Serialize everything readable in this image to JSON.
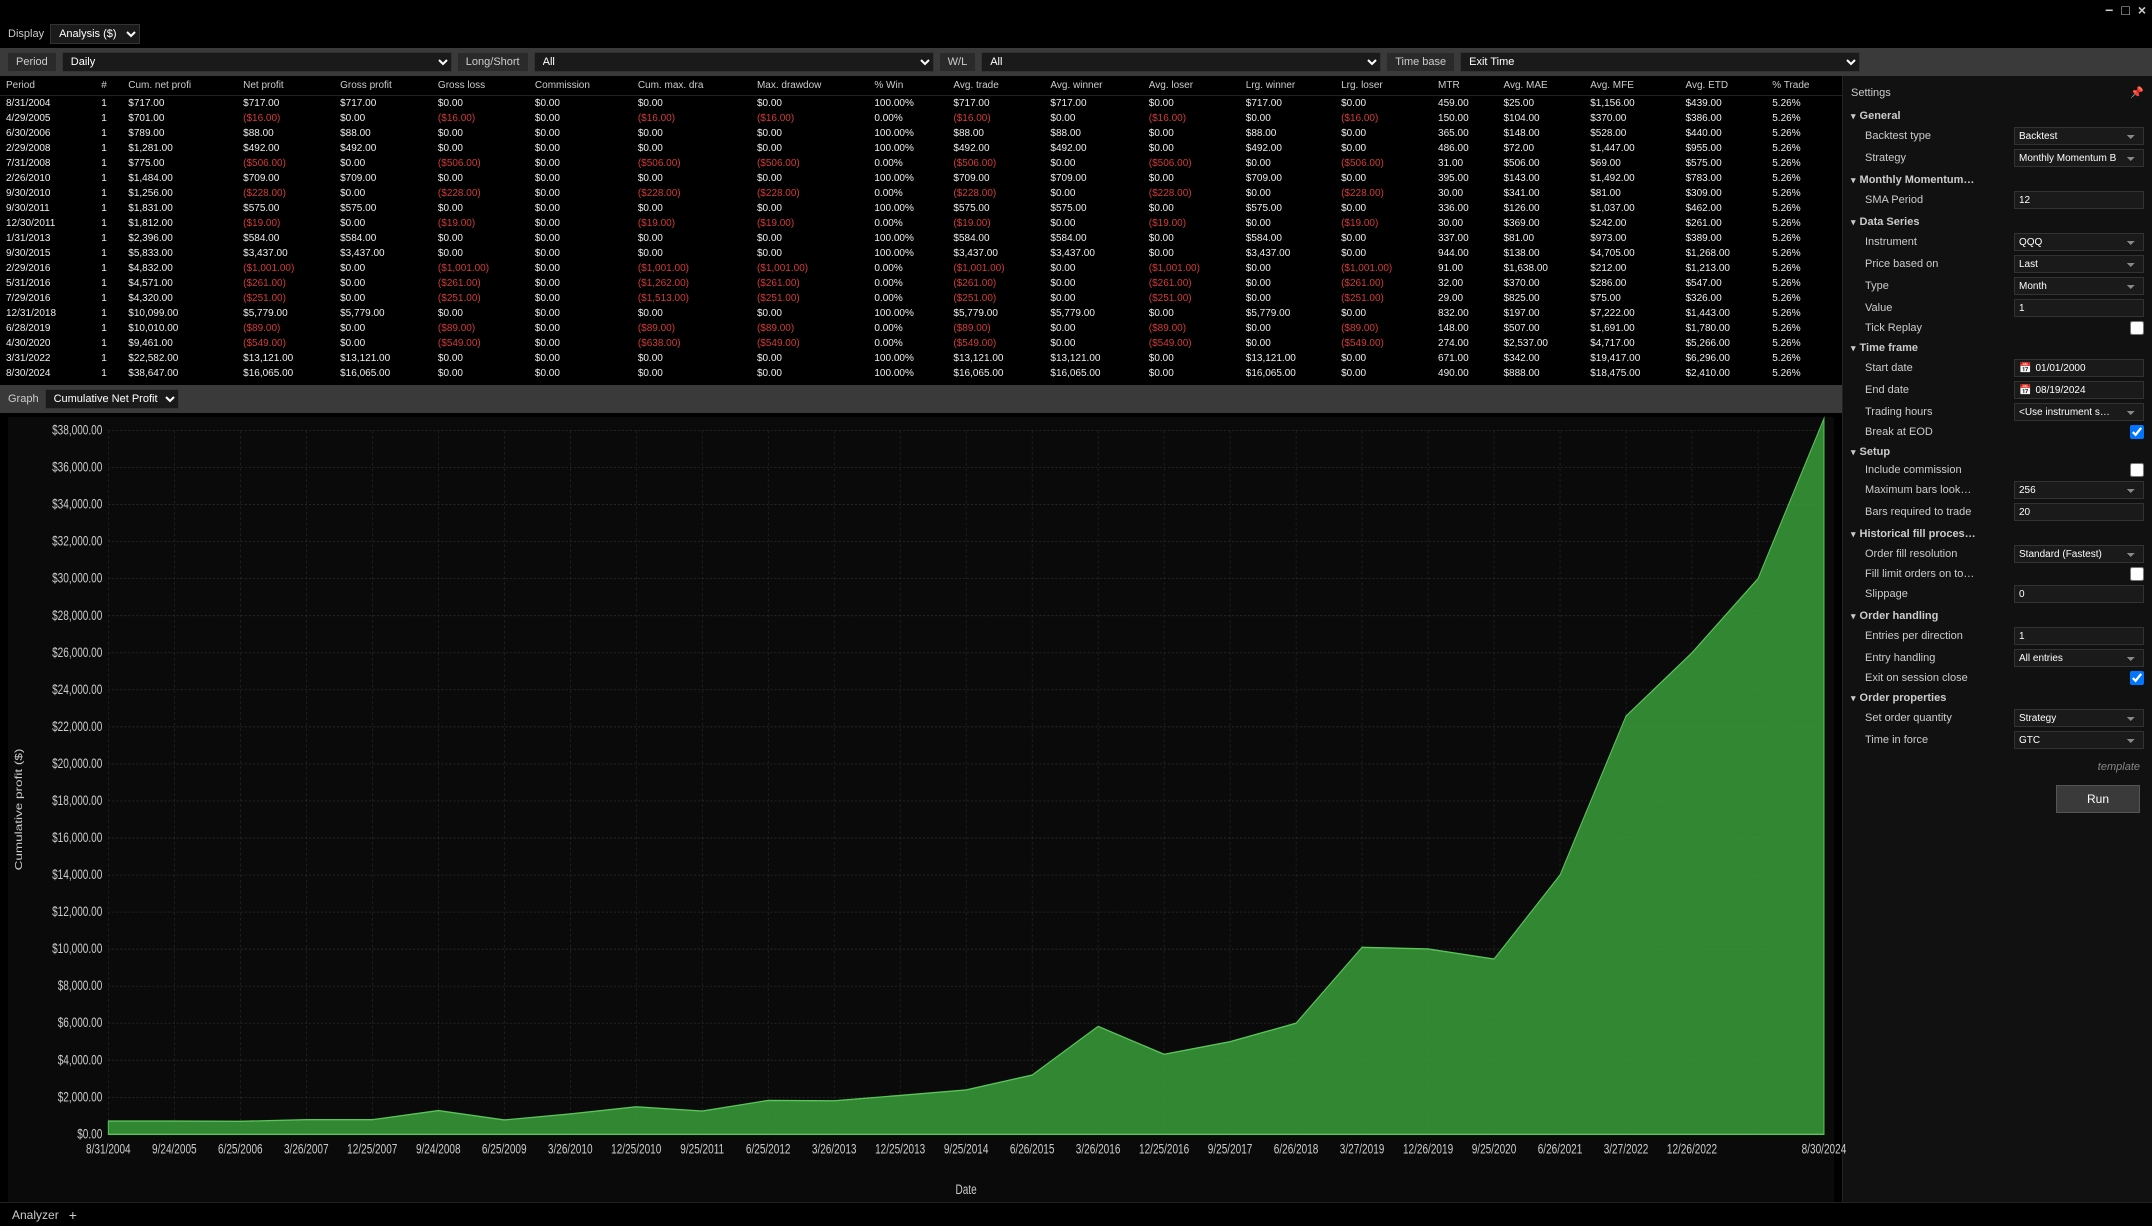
{
  "titlebar": {
    "min": "−",
    "max": "□",
    "close": "×"
  },
  "display_label": "Display",
  "display_value": "Analysis ($)",
  "filters": {
    "period_label": "Period",
    "period_value": "Daily",
    "ls_label": "Long/Short",
    "ls_value": "All",
    "wl_label": "W/L",
    "wl_value": "All",
    "tb_label": "Time base",
    "tb_value": "Exit Time"
  },
  "table": {
    "columns": [
      "Period",
      "#",
      "Cum. net profi",
      "Net profit",
      "Gross profit",
      "Gross loss",
      "Commission",
      "Cum. max. dra",
      "Max. drawdow",
      "% Win",
      "Avg. trade",
      "Avg. winner",
      "Avg. loser",
      "Lrg. winner",
      "Lrg. loser",
      "MTR",
      "Avg. MAE",
      "Avg. MFE",
      "Avg. ETD",
      "% Trade"
    ],
    "rows": [
      [
        "8/31/2004",
        "1",
        "$717.00",
        "$717.00",
        "$717.00",
        "$0.00",
        "$0.00",
        "$0.00",
        "$0.00",
        "100.00%",
        "$717.00",
        "$717.00",
        "$0.00",
        "$717.00",
        "$0.00",
        "459.00",
        "$25.00",
        "$1,156.00",
        "$439.00",
        "5.26%"
      ],
      [
        "4/29/2005",
        "1",
        "$701.00",
        "($16.00)",
        "$0.00",
        "($16.00)",
        "$0.00",
        "($16.00)",
        "($16.00)",
        "0.00%",
        "($16.00)",
        "$0.00",
        "($16.00)",
        "$0.00",
        "($16.00)",
        "150.00",
        "$104.00",
        "$370.00",
        "$386.00",
        "5.26%"
      ],
      [
        "6/30/2006",
        "1",
        "$789.00",
        "$88.00",
        "$88.00",
        "$0.00",
        "$0.00",
        "$0.00",
        "$0.00",
        "100.00%",
        "$88.00",
        "$88.00",
        "$0.00",
        "$88.00",
        "$0.00",
        "365.00",
        "$148.00",
        "$528.00",
        "$440.00",
        "5.26%"
      ],
      [
        "2/29/2008",
        "1",
        "$1,281.00",
        "$492.00",
        "$492.00",
        "$0.00",
        "$0.00",
        "$0.00",
        "$0.00",
        "100.00%",
        "$492.00",
        "$492.00",
        "$0.00",
        "$492.00",
        "$0.00",
        "486.00",
        "$72.00",
        "$1,447.00",
        "$955.00",
        "5.26%"
      ],
      [
        "7/31/2008",
        "1",
        "$775.00",
        "($506.00)",
        "$0.00",
        "($506.00)",
        "$0.00",
        "($506.00)",
        "($506.00)",
        "0.00%",
        "($506.00)",
        "$0.00",
        "($506.00)",
        "$0.00",
        "($506.00)",
        "31.00",
        "$506.00",
        "$69.00",
        "$575.00",
        "5.26%"
      ],
      [
        "2/26/2010",
        "1",
        "$1,484.00",
        "$709.00",
        "$709.00",
        "$0.00",
        "$0.00",
        "$0.00",
        "$0.00",
        "100.00%",
        "$709.00",
        "$709.00",
        "$0.00",
        "$709.00",
        "$0.00",
        "395.00",
        "$143.00",
        "$1,492.00",
        "$783.00",
        "5.26%"
      ],
      [
        "9/30/2010",
        "1",
        "$1,256.00",
        "($228.00)",
        "$0.00",
        "($228.00)",
        "$0.00",
        "($228.00)",
        "($228.00)",
        "0.00%",
        "($228.00)",
        "$0.00",
        "($228.00)",
        "$0.00",
        "($228.00)",
        "30.00",
        "$341.00",
        "$81.00",
        "$309.00",
        "5.26%"
      ],
      [
        "9/30/2011",
        "1",
        "$1,831.00",
        "$575.00",
        "$575.00",
        "$0.00",
        "$0.00",
        "$0.00",
        "$0.00",
        "100.00%",
        "$575.00",
        "$575.00",
        "$0.00",
        "$575.00",
        "$0.00",
        "336.00",
        "$126.00",
        "$1,037.00",
        "$462.00",
        "5.26%"
      ],
      [
        "12/30/2011",
        "1",
        "$1,812.00",
        "($19.00)",
        "$0.00",
        "($19.00)",
        "$0.00",
        "($19.00)",
        "($19.00)",
        "0.00%",
        "($19.00)",
        "$0.00",
        "($19.00)",
        "$0.00",
        "($19.00)",
        "30.00",
        "$369.00",
        "$242.00",
        "$261.00",
        "5.26%"
      ],
      [
        "1/31/2013",
        "1",
        "$2,396.00",
        "$584.00",
        "$584.00",
        "$0.00",
        "$0.00",
        "$0.00",
        "$0.00",
        "100.00%",
        "$584.00",
        "$584.00",
        "$0.00",
        "$584.00",
        "$0.00",
        "337.00",
        "$81.00",
        "$973.00",
        "$389.00",
        "5.26%"
      ],
      [
        "9/30/2015",
        "1",
        "$5,833.00",
        "$3,437.00",
        "$3,437.00",
        "$0.00",
        "$0.00",
        "$0.00",
        "$0.00",
        "100.00%",
        "$3,437.00",
        "$3,437.00",
        "$0.00",
        "$3,437.00",
        "$0.00",
        "944.00",
        "$138.00",
        "$4,705.00",
        "$1,268.00",
        "5.26%"
      ],
      [
        "2/29/2016",
        "1",
        "$4,832.00",
        "($1,001.00)",
        "$0.00",
        "($1,001.00)",
        "$0.00",
        "($1,001.00)",
        "($1,001.00)",
        "0.00%",
        "($1,001.00)",
        "$0.00",
        "($1,001.00)",
        "$0.00",
        "($1,001.00)",
        "91.00",
        "$1,638.00",
        "$212.00",
        "$1,213.00",
        "5.26%"
      ],
      [
        "5/31/2016",
        "1",
        "$4,571.00",
        "($261.00)",
        "$0.00",
        "($261.00)",
        "$0.00",
        "($1,262.00)",
        "($261.00)",
        "0.00%",
        "($261.00)",
        "$0.00",
        "($261.00)",
        "$0.00",
        "($261.00)",
        "32.00",
        "$370.00",
        "$286.00",
        "$547.00",
        "5.26%"
      ],
      [
        "7/29/2016",
        "1",
        "$4,320.00",
        "($251.00)",
        "$0.00",
        "($251.00)",
        "$0.00",
        "($1,513.00)",
        "($251.00)",
        "0.00%",
        "($251.00)",
        "$0.00",
        "($251.00)",
        "$0.00",
        "($251.00)",
        "29.00",
        "$825.00",
        "$75.00",
        "$326.00",
        "5.26%"
      ],
      [
        "12/31/2018",
        "1",
        "$10,099.00",
        "$5,779.00",
        "$5,779.00",
        "$0.00",
        "$0.00",
        "$0.00",
        "$0.00",
        "100.00%",
        "$5,779.00",
        "$5,779.00",
        "$0.00",
        "$5,779.00",
        "$0.00",
        "832.00",
        "$197.00",
        "$7,222.00",
        "$1,443.00",
        "5.26%"
      ],
      [
        "6/28/2019",
        "1",
        "$10,010.00",
        "($89.00)",
        "$0.00",
        "($89.00)",
        "$0.00",
        "($89.00)",
        "($89.00)",
        "0.00%",
        "($89.00)",
        "$0.00",
        "($89.00)",
        "$0.00",
        "($89.00)",
        "148.00",
        "$507.00",
        "$1,691.00",
        "$1,780.00",
        "5.26%"
      ],
      [
        "4/30/2020",
        "1",
        "$9,461.00",
        "($549.00)",
        "$0.00",
        "($549.00)",
        "$0.00",
        "($638.00)",
        "($549.00)",
        "0.00%",
        "($549.00)",
        "$0.00",
        "($549.00)",
        "$0.00",
        "($549.00)",
        "274.00",
        "$2,537.00",
        "$4,717.00",
        "$5,266.00",
        "5.26%"
      ],
      [
        "3/31/2022",
        "1",
        "$22,582.00",
        "$13,121.00",
        "$13,121.00",
        "$0.00",
        "$0.00",
        "$0.00",
        "$0.00",
        "100.00%",
        "$13,121.00",
        "$13,121.00",
        "$0.00",
        "$13,121.00",
        "$0.00",
        "671.00",
        "$342.00",
        "$19,417.00",
        "$6,296.00",
        "5.26%"
      ],
      [
        "8/30/2024",
        "1",
        "$38,647.00",
        "$16,065.00",
        "$16,065.00",
        "$0.00",
        "$0.00",
        "$0.00",
        "$0.00",
        "100.00%",
        "$16,065.00",
        "$16,065.00",
        "$0.00",
        "$16,065.00",
        "$0.00",
        "490.00",
        "$888.00",
        "$18,475.00",
        "$2,410.00",
        "5.26%"
      ]
    ],
    "neg_marker": "("
  },
  "graph_label": "Graph",
  "graph_select": "Cumulative Net Profit",
  "chart": {
    "type": "area",
    "title": "",
    "y_label": "Cumulative profit ($)",
    "x_label": "Date",
    "y_min": 0,
    "y_max": 38000,
    "y_step": 2000,
    "x_ticks": [
      "8/31/2004",
      "9/24/2005",
      "6/25/2006",
      "3/26/2007",
      "12/25/2007",
      "9/24/2008",
      "6/25/2009",
      "3/26/2010",
      "12/25/2010",
      "9/25/2011",
      "6/25/2012",
      "3/26/2013",
      "12/25/2013",
      "9/25/2014",
      "6/26/2015",
      "3/26/2016",
      "12/25/2016",
      "9/25/2017",
      "6/26/2018",
      "3/27/2019",
      "12/26/2019",
      "9/25/2020",
      "6/26/2021",
      "3/27/2022",
      "12/26/2022",
      "",
      "8/30/2024"
    ],
    "points": [
      [
        0,
        717
      ],
      [
        1,
        717
      ],
      [
        2,
        701
      ],
      [
        3,
        789
      ],
      [
        4,
        789
      ],
      [
        5,
        1281
      ],
      [
        6,
        775
      ],
      [
        7,
        1100
      ],
      [
        8,
        1484
      ],
      [
        9,
        1256
      ],
      [
        10,
        1831
      ],
      [
        11,
        1812
      ],
      [
        12,
        2100
      ],
      [
        13,
        2396
      ],
      [
        14,
        3200
      ],
      [
        15,
        5833
      ],
      [
        16,
        4320
      ],
      [
        17,
        5000
      ],
      [
        18,
        6000
      ],
      [
        19,
        10099
      ],
      [
        20,
        10010
      ],
      [
        21,
        9461
      ],
      [
        22,
        14000
      ],
      [
        23,
        22582
      ],
      [
        24,
        26000
      ],
      [
        25,
        30000
      ],
      [
        26,
        38647
      ]
    ],
    "fill_color": "#3a9e3a",
    "stroke_color": "#5ac45a",
    "bg_color": "#0a0a0a",
    "grid_color": "#333333",
    "text_color": "#cccccc"
  },
  "settings_title": "Settings",
  "settings": {
    "sections": [
      {
        "title": "General",
        "rows": [
          {
            "lbl": "Backtest type",
            "val": "Backtest",
            "type": "sel"
          },
          {
            "lbl": "Strategy",
            "val": "Monthly Momentum B",
            "type": "sel"
          }
        ]
      },
      {
        "title": "Monthly Momentum…",
        "rows": [
          {
            "lbl": "SMA Period",
            "val": "12",
            "type": "txt"
          }
        ]
      },
      {
        "title": "Data Series",
        "rows": [
          {
            "lbl": "Instrument",
            "val": "QQQ",
            "type": "sel"
          },
          {
            "lbl": "Price based on",
            "val": "Last",
            "type": "sel"
          },
          {
            "lbl": "Type",
            "val": "Month",
            "type": "sel"
          },
          {
            "lbl": "Value",
            "val": "1",
            "type": "txt"
          },
          {
            "lbl": "Tick Replay",
            "val": "",
            "type": "chk"
          }
        ]
      },
      {
        "title": "Time frame",
        "rows": [
          {
            "lbl": "Start date",
            "val": "01/01/2000",
            "type": "date"
          },
          {
            "lbl": "End date",
            "val": "08/19/2024",
            "type": "date"
          },
          {
            "lbl": "Trading hours",
            "val": "<Use instrument s…",
            "type": "sel"
          },
          {
            "lbl": "Break at EOD",
            "val": "",
            "type": "chk",
            "checked": true
          }
        ]
      },
      {
        "title": "Setup",
        "rows": [
          {
            "lbl": "Include commission",
            "val": "",
            "type": "chk"
          },
          {
            "lbl": "Maximum bars look…",
            "val": "256",
            "type": "sel"
          },
          {
            "lbl": "Bars required to trade",
            "val": "20",
            "type": "txt"
          }
        ]
      },
      {
        "title": "Historical fill proces…",
        "rows": [
          {
            "lbl": "Order fill resolution",
            "val": "Standard (Fastest)",
            "type": "sel"
          },
          {
            "lbl": "Fill limit orders on to…",
            "val": "",
            "type": "chk"
          },
          {
            "lbl": "Slippage",
            "val": "0",
            "type": "txt"
          }
        ]
      },
      {
        "title": "Order handling",
        "rows": [
          {
            "lbl": "Entries per direction",
            "val": "1",
            "type": "txt"
          },
          {
            "lbl": "Entry handling",
            "val": "All entries",
            "type": "sel"
          },
          {
            "lbl": "Exit on session close",
            "val": "",
            "type": "chk",
            "checked": true
          }
        ]
      },
      {
        "title": "Order properties",
        "rows": [
          {
            "lbl": "Set order quantity",
            "val": "Strategy",
            "type": "sel"
          },
          {
            "lbl": "Time in force",
            "val": "GTC",
            "type": "sel"
          }
        ]
      }
    ],
    "template": "template",
    "run": "Run"
  },
  "bottom": {
    "tab": "Analyzer",
    "plus": "+"
  }
}
